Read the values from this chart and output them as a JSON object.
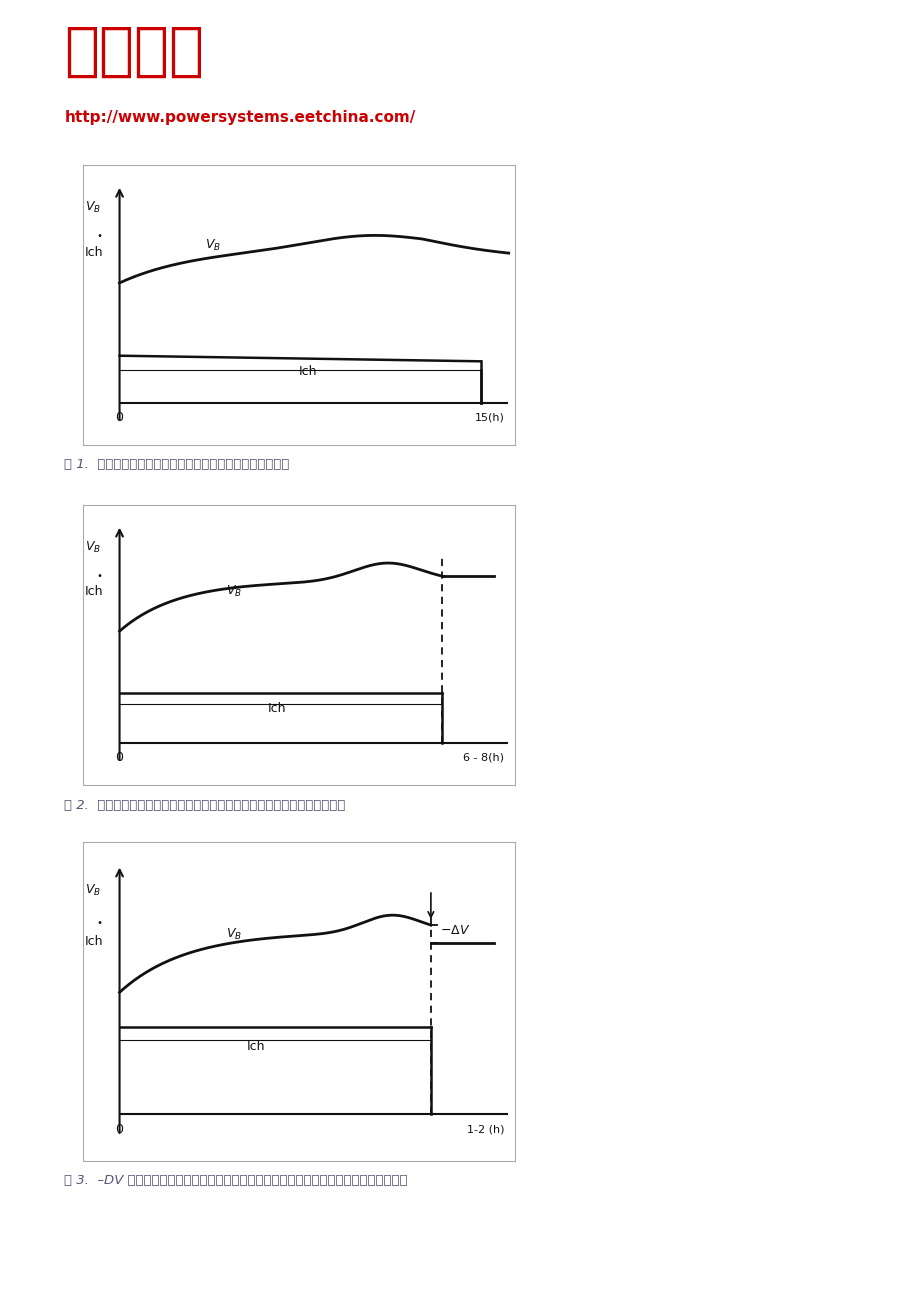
{
  "title_chinese": "电源系统",
  "title_color": "#CC0000",
  "url": "http://www.powersystems.eetchina.com/",
  "url_color": "#CC0000",
  "fig_width": 9.2,
  "fig_height": 13.02,
  "bg_color": "#ffffff",
  "separator_color": "#444444",
  "captions": [
    "图 1.  半恒流充电，主要应用于剃须刀，数字无绳电话和玩具",
    "图 2.  定时器控制充电，主要应用于笔记本，数据终端，无线设备和蜂窝电话",
    "图 3.  –DV 终止充电方式，主要应用于笔记本，数据终端，摄录像机，无线设备和蜂窝电话"
  ],
  "caption_color": "#555577",
  "chart_border_color": "#999999",
  "line_color": "#111111",
  "plot1_xlabel": "15(h)",
  "plot2_xlabel": "6 - 8(h)",
  "plot3_xlabel": "1-2 (h)"
}
